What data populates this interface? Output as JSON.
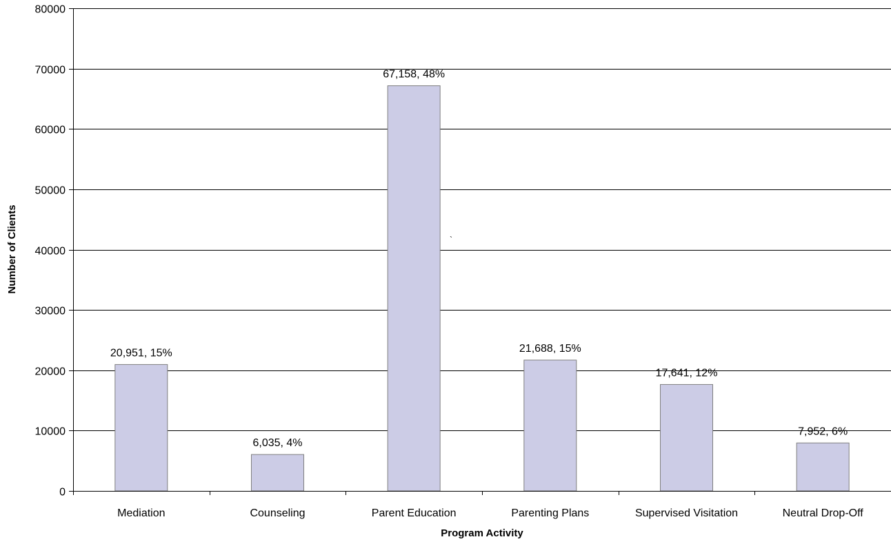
{
  "chart_data": {
    "type": "bar",
    "xlabel": "Program Activity",
    "ylabel": "Number of Clients",
    "ylim": [
      0,
      80000
    ],
    "yticks": [
      0,
      10000,
      20000,
      30000,
      40000,
      50000,
      60000,
      70000,
      80000
    ],
    "grid": true,
    "categories": [
      "Mediation",
      "Counseling",
      "Parent Education",
      "Parenting Plans",
      "Supervised Visitation",
      "Neutral Drop-Off"
    ],
    "values": [
      20951,
      6035,
      67158,
      21688,
      17641,
      7952
    ],
    "data_labels": [
      "20,951, 15%",
      "6,035, 4%",
      "67,158, 48%",
      "21,688, 15%",
      "17,641, 12%",
      "7,952, 6%"
    ],
    "stray_mark": "`",
    "colors": {
      "bar_fill": "#ccccE6",
      "bar_stroke": "#7f7f7f",
      "grid": "#000000"
    }
  }
}
